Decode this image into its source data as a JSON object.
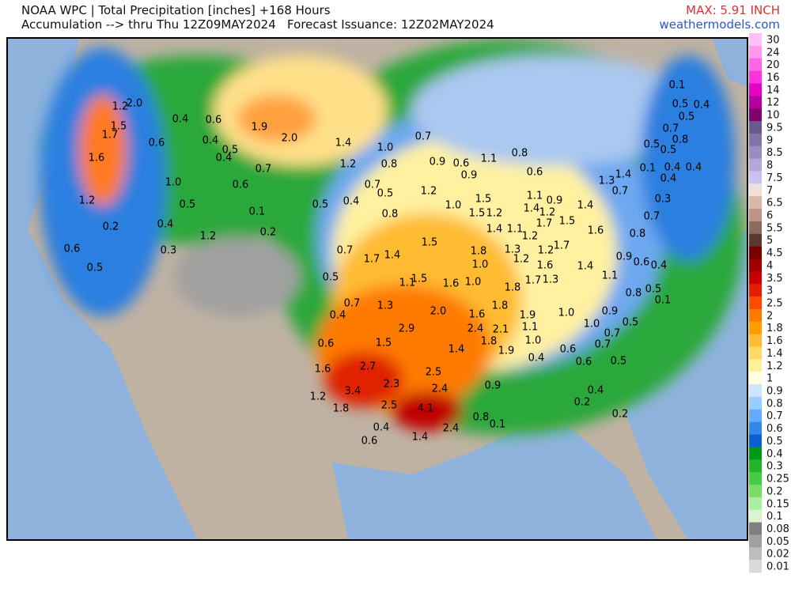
{
  "header": {
    "title": "NOAA WPC | Total Precipitation [inches] +168 Hours",
    "subtitle": "Accumulation --> thru Thu 12Z09MAY2024   Forecast Issuance: 12Z02MAY2024",
    "max": "MAX: 5.91 INCH",
    "site": "weathermodels.com"
  },
  "legend": {
    "labels": [
      30,
      24,
      20,
      16,
      14,
      12,
      10,
      9.5,
      9,
      8.5,
      8,
      7.5,
      7,
      6.5,
      6,
      5.5,
      5,
      4.5,
      4,
      3.5,
      3,
      2.5,
      2,
      1.8,
      1.6,
      1.4,
      1.2,
      1,
      0.9,
      0.8,
      0.7,
      0.6,
      0.5,
      0.4,
      0.3,
      0.25,
      0.2,
      0.15,
      0.1,
      0.08,
      0.05,
      0.02,
      0.01
    ],
    "colors": [
      "#ffc0f5",
      "#ff99ee",
      "#ff66e6",
      "#ff33dd",
      "#e600c8",
      "#b3009c",
      "#800070",
      "#6a5a8c",
      "#8273a6",
      "#9a8cbf",
      "#b3a6d9",
      "#ccc0f0",
      "#f0e0dc",
      "#d9b8aa",
      "#bf9485",
      "#8c6a5e",
      "#5a3a30",
      "#7a0000",
      "#a00000",
      "#c80000",
      "#e61e00",
      "#ff4a00",
      "#ff7a00",
      "#ff9d00",
      "#ffbb33",
      "#ffd966",
      "#fff099",
      "#ffffe0",
      "#cce6ff",
      "#99ccff",
      "#66aaff",
      "#3388ee",
      "#0a5fd9",
      "#009a1a",
      "#22b52a",
      "#44cc44",
      "#77dd66",
      "#aaeea0",
      "#d9f5d0",
      "#808080",
      "#a0a0a0",
      "#bdbdbd",
      "#d9d9d9"
    ]
  },
  "map": {
    "labels": [
      "1.2",
      "2.0",
      "1.5",
      "1.7",
      "1.6",
      "1.2",
      "0.6",
      "0.4",
      "0.6",
      "0.4",
      "0.5",
      "0.4",
      "0.7",
      "1.0",
      "0.6",
      "0.5",
      "0.1",
      "0.4",
      "0.2",
      "0.2",
      "1.2",
      "0.3",
      "0.6",
      "0.5",
      "1.9",
      "2.0",
      "1.4",
      "1.0",
      "1.2",
      "0.8",
      "0.7",
      "0.9",
      "0.6",
      "1.1",
      "0.9",
      "0.8",
      "0.6",
      "0.7",
      "0.5",
      "1.2",
      "0.4",
      "0.5",
      "0.8",
      "1.0",
      "1.5",
      "1.5",
      "1.2",
      "1.1",
      "0.9",
      "1.4",
      "1.2",
      "1.7",
      "1.5",
      "1.4",
      "1.3",
      "1.4",
      "0.7",
      "1.4",
      "1.1",
      "1.2",
      "1.2",
      "1.7",
      "1.6",
      "1.5",
      "1.8",
      "1.0",
      "1.3",
      "1.2",
      "1.6",
      "1.4",
      "0.9",
      "0.6",
      "1.7",
      "1.4",
      "0.7",
      "0.5",
      "1.1",
      "1.5",
      "1.6",
      "1.0",
      "1.8",
      "1.7",
      "1.3",
      "1.1",
      "0.8",
      "0.5",
      "0.1",
      "0.7",
      "1.3",
      "2.0",
      "1.8",
      "1.6",
      "1.9",
      "1.0",
      "0.9",
      "0.5",
      "1.0",
      "0.4",
      "2.9",
      "2.4",
      "2.1",
      "1.1",
      "0.7",
      "0.6",
      "1.5",
      "1.8",
      "1.0",
      "0.7",
      "1.4",
      "1.9",
      "0.6",
      "0.4",
      "0.6",
      "0.5",
      "1.6",
      "2.7",
      "2.5",
      "2.3",
      "2.4",
      "0.9",
      "3.4",
      "0.4",
      "1.2",
      "1.8",
      "2.5",
      "4.1",
      "0.2",
      "0.2",
      "0.8",
      "0.1",
      "0.4",
      "2.4",
      "1.4",
      "0.6",
      "0.1",
      "0.5",
      "0.4",
      "0.5",
      "0.7",
      "0.8",
      "0.5",
      "0.5",
      "0.4",
      "0.4",
      "0.1",
      "0.4",
      "0.3",
      "0.7",
      "0.8",
      "0.4"
    ]
  }
}
